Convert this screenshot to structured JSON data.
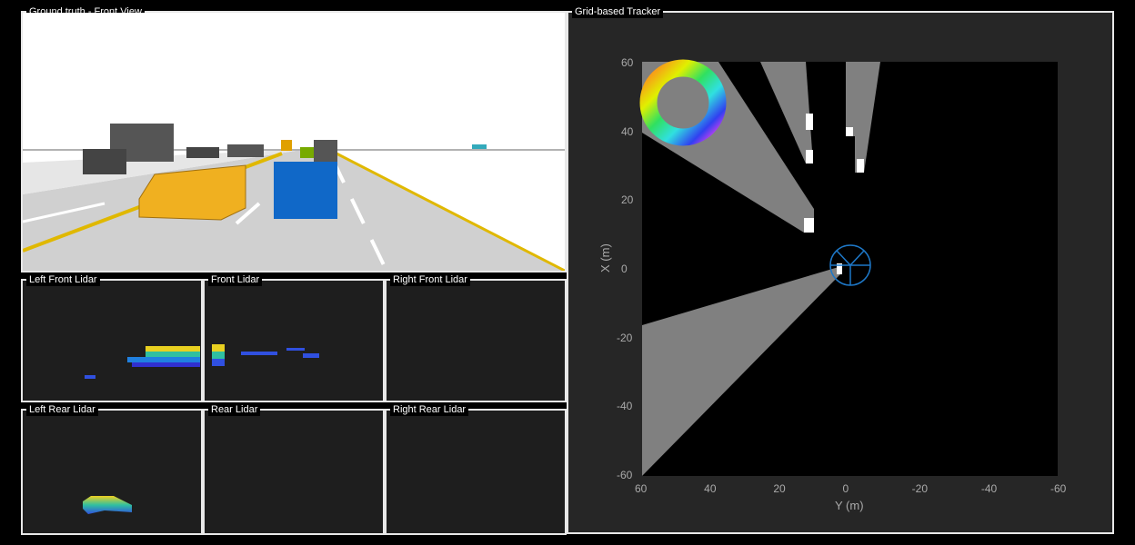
{
  "ground_truth": {
    "title": "Ground truth - Front View"
  },
  "lidar_panels": [
    {
      "title": "Left Front Lidar"
    },
    {
      "title": "Front Lidar"
    },
    {
      "title": "Right Front Lidar"
    },
    {
      "title": "Left Rear Lidar"
    },
    {
      "title": "Rear Lidar"
    },
    {
      "title": "Right Rear Lidar"
    }
  ],
  "tracker": {
    "title": "Grid-based Tracker",
    "xlabel": "Y (m)",
    "ylabel": "X (m)",
    "xticks": [
      "60",
      "40",
      "20",
      "0",
      "-20",
      "-40",
      "-60"
    ],
    "yticks": [
      "60",
      "40",
      "20",
      "0",
      "-20",
      "-40",
      "-60"
    ],
    "xlim": [
      60,
      -60
    ],
    "ylim": [
      -60,
      60
    ],
    "colors": {
      "occupied": "#ffffff",
      "free": "#808080",
      "unknown": "#000000",
      "ego": "#1e78c8"
    }
  }
}
